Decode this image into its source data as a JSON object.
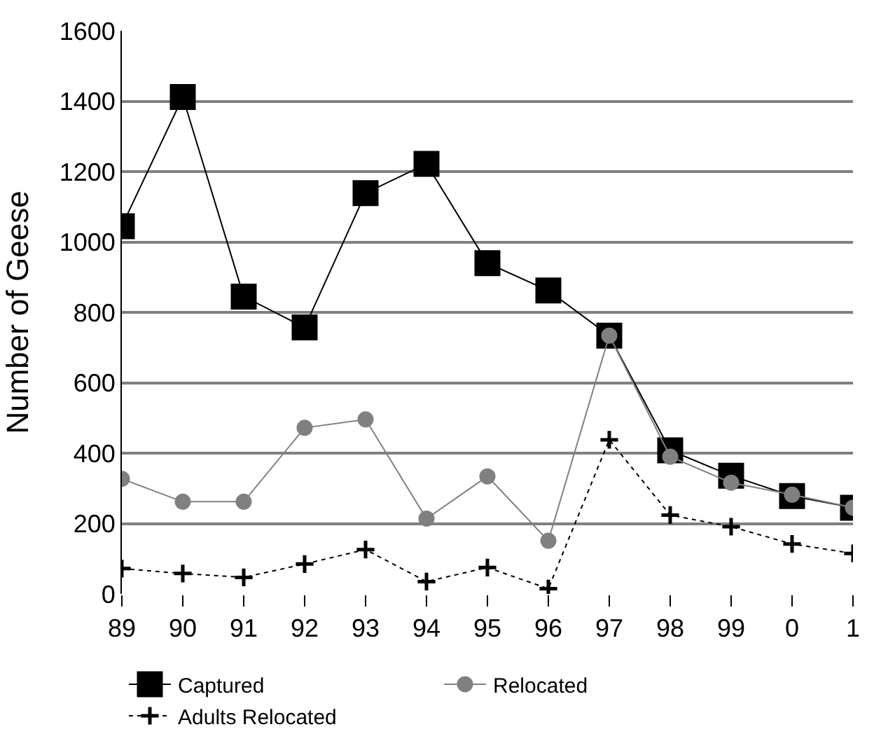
{
  "chart_data": {
    "type": "line",
    "ylabel": "Number of Geese",
    "categories": [
      "89",
      "90",
      "91",
      "92",
      "93",
      "94",
      "95",
      "96",
      "97",
      "98",
      "99",
      "0",
      "1"
    ],
    "ylim": [
      0,
      1600
    ],
    "yticks": [
      0,
      200,
      400,
      600,
      800,
      1000,
      1200,
      1400,
      1600
    ],
    "grid": "y",
    "legend": "bottom",
    "series": [
      {
        "name": "Captured",
        "color": "#000000",
        "marker": "square",
        "line_style": "solid",
        "values": [
          1045,
          1412,
          845,
          757,
          1139,
          1222,
          940,
          862,
          734,
          408,
          336,
          278,
          245
        ]
      },
      {
        "name": "Relocated",
        "color": "#808080",
        "marker": "circle",
        "line_style": "solid",
        "values": [
          327,
          262,
          262,
          472,
          496,
          214,
          334,
          151,
          734,
          390,
          316,
          282,
          245
        ]
      },
      {
        "name": "Adults Relocated",
        "color": "#000000",
        "marker": "cross",
        "line_style": "dotted",
        "values": [
          72,
          58,
          47,
          85,
          126,
          35,
          75,
          15,
          438,
          224,
          191,
          142,
          115
        ]
      }
    ]
  }
}
